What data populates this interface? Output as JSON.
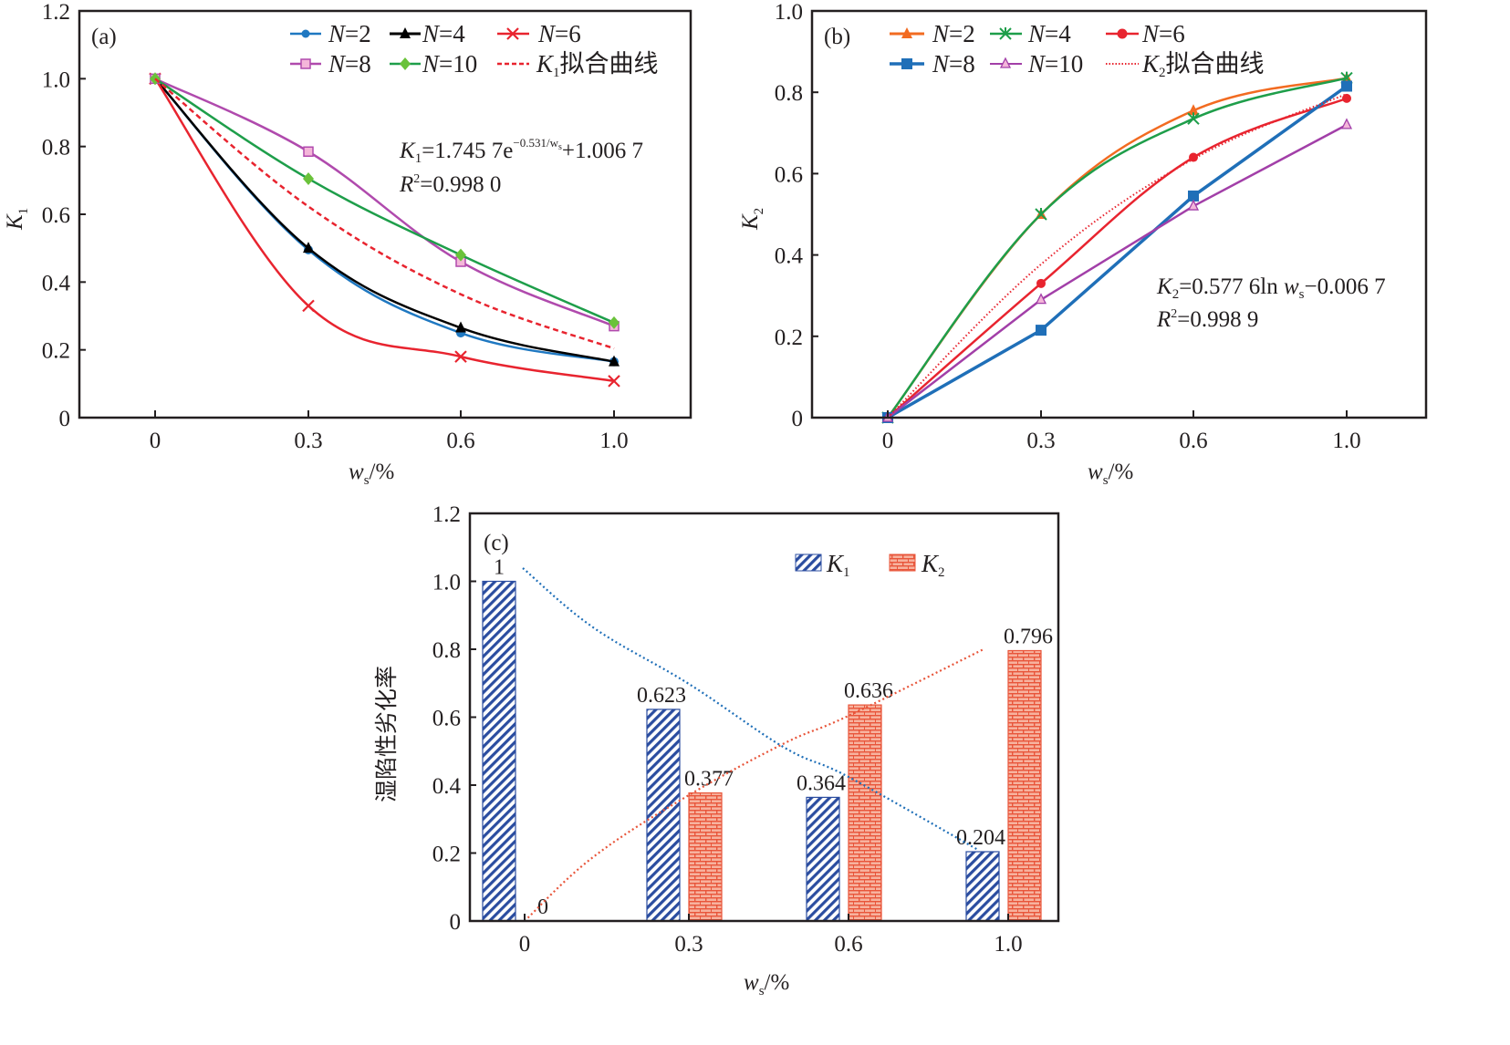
{
  "chart_data": [
    {
      "id": "a",
      "type": "line",
      "panel_label": "(a)",
      "xlabel": "w_s/%",
      "xlabel_main": "w",
      "xlabel_sub": "s",
      "xlabel_suffix": "/%",
      "ylabel": "K_1",
      "ylabel_main": "K",
      "ylabel_sub": "1",
      "categories": [
        "0",
        "0.3",
        "0.6",
        "1.0"
      ],
      "x": [
        0,
        0.3,
        0.6,
        1.0
      ],
      "ylim": [
        0,
        1.2
      ],
      "yticks": [
        "0",
        "0.2",
        "0.4",
        "0.6",
        "0.8",
        "1.0",
        "1.2"
      ],
      "grid": false,
      "legend_position": "top-right",
      "series": [
        {
          "name": "N=2",
          "color": "#1f78c1",
          "marker": "circle",
          "values": [
            1.0,
            0.495,
            0.25,
            0.165
          ]
        },
        {
          "name": "N=4",
          "color": "#000000",
          "marker": "triangle",
          "values": [
            1.0,
            0.5,
            0.265,
            0.165
          ]
        },
        {
          "name": "N=6",
          "color": "#e8242f",
          "marker": "x",
          "values": [
            1.0,
            0.33,
            0.18,
            0.108
          ]
        },
        {
          "name": "N=8",
          "color": "#b04aad",
          "marker": "square-open",
          "values": [
            1.0,
            0.785,
            0.46,
            0.27
          ]
        },
        {
          "name": "N=10",
          "color": "#1e9e4a",
          "marker": "diamond",
          "values": [
            1.0,
            0.705,
            0.48,
            0.28
          ]
        },
        {
          "name": "K1拟合曲线",
          "color": "#e8242f",
          "marker": "none",
          "dash": "dashed",
          "values": [
            1.0,
            0.623,
            0.364,
            0.204
          ]
        }
      ],
      "legend": {
        "row1": [
          {
            "n": "N",
            "eq": "=2"
          },
          {
            "n": "N",
            "eq": "=4"
          },
          {
            "n": "N",
            "eq": "=6"
          }
        ],
        "row2": [
          {
            "n": "N",
            "eq": "=8"
          },
          {
            "n": "N",
            "eq": "=10"
          },
          {
            "k": "K",
            "sub": "1",
            "text": "拟合曲线"
          }
        ]
      },
      "annotation": {
        "line1_k": "K",
        "line1_sub": "1",
        "line1_main": "=1.745 7e",
        "line1_sup": "−0.531/w",
        "line1_sup_sub": "s",
        "line1_tail": "+1.006 7",
        "line2_r": "R",
        "line2_sup": "2",
        "line2_tail": "=0.998 0"
      }
    },
    {
      "id": "b",
      "type": "line",
      "panel_label": "(b)",
      "xlabel": "w_s/%",
      "xlabel_main": "w",
      "xlabel_sub": "s",
      "xlabel_suffix": "/%",
      "ylabel": "K_2",
      "ylabel_main": "K",
      "ylabel_sub": "2",
      "categories": [
        "0",
        "0.3",
        "0.6",
        "1.0"
      ],
      "x": [
        0,
        0.3,
        0.6,
        1.0
      ],
      "ylim": [
        0,
        1.0
      ],
      "yticks": [
        "0",
        "0.2",
        "0.4",
        "0.6",
        "0.8",
        "1.0"
      ],
      "grid": false,
      "legend_position": "top-right",
      "series": [
        {
          "name": "N=2",
          "color": "#f26b21",
          "marker": "triangle",
          "values": [
            0,
            0.5,
            0.755,
            0.835
          ]
        },
        {
          "name": "N=4",
          "color": "#1e9e4a",
          "marker": "asterisk",
          "values": [
            0,
            0.5,
            0.735,
            0.835
          ]
        },
        {
          "name": "N=6",
          "color": "#e8242f",
          "marker": "circle",
          "values": [
            0,
            0.33,
            0.64,
            0.785
          ]
        },
        {
          "name": "N=8",
          "color": "#1f6fb8",
          "marker": "square",
          "values": [
            0,
            0.215,
            0.545,
            0.815
          ]
        },
        {
          "name": "N=10",
          "color": "#a23fa8",
          "marker": "triangle-open",
          "values": [
            0,
            0.29,
            0.52,
            0.72
          ]
        },
        {
          "name": "K2拟合曲线",
          "color": "#e8242f",
          "marker": "none",
          "dash": "dotted",
          "values": [
            0,
            0.377,
            0.636,
            0.796
          ]
        }
      ],
      "legend": {
        "row1": [
          {
            "n": "N",
            "eq": "=2"
          },
          {
            "n": "N",
            "eq": "=4"
          },
          {
            "n": "N",
            "eq": "=6"
          }
        ],
        "row2": [
          {
            "n": "N",
            "eq": "=8"
          },
          {
            "n": "N",
            "eq": "=10"
          },
          {
            "k": "K",
            "sub": "2",
            "text": "拟合曲线"
          }
        ]
      },
      "annotation": {
        "line1_k": "K",
        "line1_sub": "2",
        "line1_main": "=0.577 6ln ",
        "line1_w": "w",
        "line1_w_sub": "s",
        "line1_tail": "−0.006 7",
        "line2_r": "R",
        "line2_sup": "2",
        "line2_tail": "=0.998 9"
      }
    },
    {
      "id": "c",
      "type": "bar",
      "panel_label": "(c)",
      "xlabel": "w_s/%",
      "xlabel_main": "w",
      "xlabel_sub": "s",
      "xlabel_suffix": "/%",
      "ylabel": "湿陷性劣化率",
      "categories": [
        "0",
        "0.3",
        "0.6",
        "1.0"
      ],
      "ylim": [
        0,
        1.2
      ],
      "yticks": [
        "0",
        "0.2",
        "0.4",
        "0.6",
        "0.8",
        "1.0",
        "1.2"
      ],
      "grid": false,
      "legend_position": "top-right",
      "series": [
        {
          "name": "K1",
          "color": "#2b4da0",
          "pattern": "diagonal-hatch",
          "values": [
            1,
            0.623,
            0.364,
            0.204
          ],
          "labels": [
            "1",
            "0.623",
            "0.364",
            "0.204"
          ]
        },
        {
          "name": "K2",
          "color": "#e8553a",
          "pattern": "brick",
          "values": [
            0,
            0.377,
            0.636,
            0.796
          ],
          "labels": [
            "0",
            "0.377",
            "0.636",
            "0.796"
          ]
        }
      ],
      "trendlines": [
        {
          "series": "K1",
          "color": "#1f6fb8",
          "dash": "dotted"
        },
        {
          "series": "K2",
          "color": "#e8553a",
          "dash": "dotted"
        }
      ],
      "legend": [
        {
          "k": "K",
          "sub": "1"
        },
        {
          "k": "K",
          "sub": "2"
        }
      ]
    }
  ]
}
